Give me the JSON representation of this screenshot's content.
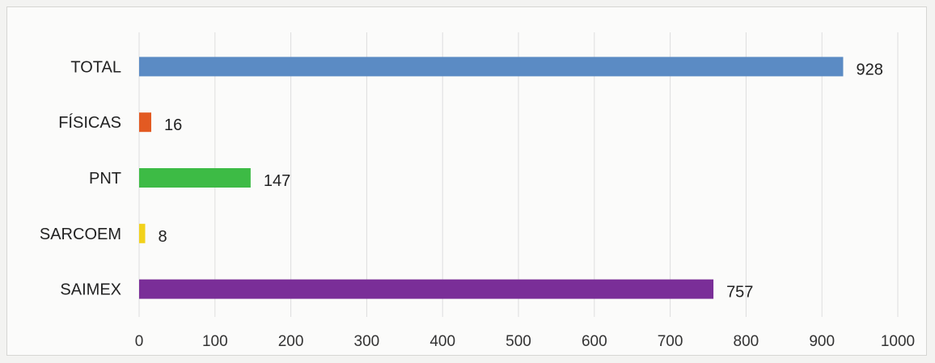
{
  "chart_data": {
    "type": "bar",
    "orientation": "horizontal",
    "categories": [
      "TOTAL",
      "FÍSICAS",
      "PNT",
      "SARCOEM",
      "SAIMEX"
    ],
    "values": [
      928,
      16,
      147,
      8,
      757
    ],
    "data_labels": [
      "928",
      "16",
      "147",
      "8",
      "757"
    ],
    "bar_colors": [
      "#5b8bc4",
      "#e35a22",
      "#3dbb45",
      "#f2d21b",
      "#7a2e98"
    ],
    "xlim": [
      0,
      1000
    ],
    "x_ticks": [
      0,
      100,
      200,
      300,
      400,
      500,
      600,
      700,
      800,
      900,
      1000
    ],
    "x_tick_labels": [
      "0",
      "100",
      "200",
      "300",
      "400",
      "500",
      "600",
      "700",
      "800",
      "900",
      "1000"
    ],
    "grid": true,
    "legend": false,
    "title": "",
    "xlabel": "",
    "ylabel": ""
  }
}
